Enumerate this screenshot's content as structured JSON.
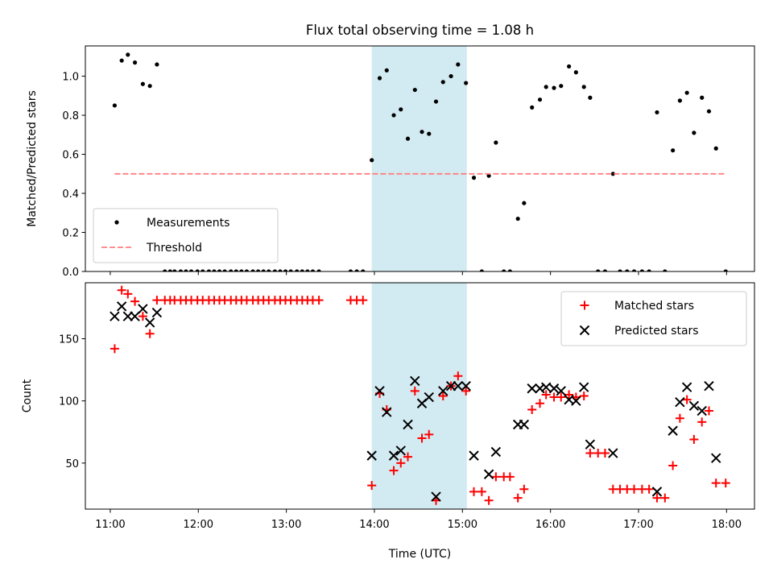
{
  "chart_data": {
    "title": "Flux total observing time = 1.08 h",
    "xlabel": "Time (UTC)",
    "x_unit": "hours UTC",
    "xlim": [
      10.717,
      18.317
    ],
    "xticks": [
      11,
      12,
      13,
      14,
      15,
      16,
      17,
      18
    ],
    "xtick_labels": [
      "11:00",
      "12:00",
      "13:00",
      "14:00",
      "15:00",
      "16:00",
      "17:00",
      "18:00"
    ],
    "highlight_span": {
      "x0": 13.97,
      "x1": 15.05,
      "color": "#add8e6"
    },
    "panels": [
      {
        "id": "ratio",
        "type": "scatter",
        "ylabel": "Matched/Predicted stars",
        "ylim": [
          0,
          1.155
        ],
        "yticks": [
          0.0,
          0.2,
          0.4,
          0.6,
          0.8,
          1.0
        ],
        "ytick_labels": [
          "0.0",
          "0.2",
          "0.4",
          "0.6",
          "0.8",
          "1.0"
        ],
        "legend": {
          "placement": "lower-left",
          "entries": [
            "Measurements",
            "Threshold"
          ]
        },
        "series": [
          {
            "name": "Measurements",
            "marker": "dot",
            "color": "#000000",
            "points": [
              [
                11.05,
                0.85
              ],
              [
                11.13,
                1.08
              ],
              [
                11.2,
                1.11
              ],
              [
                11.28,
                1.07
              ],
              [
                11.37,
                0.96
              ],
              [
                11.45,
                0.95
              ],
              [
                11.53,
                1.06
              ],
              [
                11.62,
                0.0
              ],
              [
                11.68,
                0.0
              ],
              [
                11.73,
                0.0
              ],
              [
                11.8,
                0.0
              ],
              [
                11.86,
                0.0
              ],
              [
                11.92,
                0.0
              ],
              [
                11.99,
                0.0
              ],
              [
                12.05,
                0.0
              ],
              [
                12.12,
                0.0
              ],
              [
                12.18,
                0.0
              ],
              [
                12.24,
                0.0
              ],
              [
                12.3,
                0.0
              ],
              [
                12.37,
                0.0
              ],
              [
                12.43,
                0.0
              ],
              [
                12.49,
                0.0
              ],
              [
                12.55,
                0.0
              ],
              [
                12.62,
                0.0
              ],
              [
                12.68,
                0.0
              ],
              [
                12.74,
                0.0
              ],
              [
                12.8,
                0.0
              ],
              [
                12.87,
                0.0
              ],
              [
                12.93,
                0.0
              ],
              [
                12.99,
                0.0
              ],
              [
                13.05,
                0.0
              ],
              [
                13.12,
                0.0
              ],
              [
                13.18,
                0.0
              ],
              [
                13.24,
                0.0
              ],
              [
                13.3,
                0.0
              ],
              [
                13.37,
                0.0
              ],
              [
                13.73,
                0.0
              ],
              [
                13.8,
                0.0
              ],
              [
                13.87,
                0.0
              ],
              [
                13.97,
                0.57
              ],
              [
                14.06,
                0.99
              ],
              [
                14.14,
                1.03
              ],
              [
                14.22,
                0.8
              ],
              [
                14.3,
                0.83
              ],
              [
                14.38,
                0.68
              ],
              [
                14.46,
                0.93
              ],
              [
                14.54,
                0.715
              ],
              [
                14.62,
                0.705
              ],
              [
                14.7,
                0.87
              ],
              [
                14.78,
                0.97
              ],
              [
                14.87,
                1.0
              ],
              [
                14.95,
                1.06
              ],
              [
                15.04,
                0.965
              ],
              [
                15.13,
                0.48
              ],
              [
                15.22,
                0.0
              ],
              [
                15.3,
                0.49
              ],
              [
                15.38,
                0.66
              ],
              [
                15.47,
                0.0
              ],
              [
                15.54,
                0.0
              ],
              [
                15.63,
                0.27
              ],
              [
                15.7,
                0.35
              ],
              [
                15.79,
                0.84
              ],
              [
                15.88,
                0.88
              ],
              [
                15.95,
                0.945
              ],
              [
                16.04,
                0.94
              ],
              [
                16.12,
                0.95
              ],
              [
                16.21,
                1.05
              ],
              [
                16.29,
                1.02
              ],
              [
                16.38,
                0.945
              ],
              [
                16.45,
                0.89
              ],
              [
                16.54,
                0.0
              ],
              [
                16.62,
                0.0
              ],
              [
                16.71,
                0.5
              ],
              [
                16.79,
                0.0
              ],
              [
                16.87,
                0.0
              ],
              [
                16.95,
                0.0
              ],
              [
                17.04,
                0.0
              ],
              [
                17.12,
                0.0
              ],
              [
                17.21,
                0.815
              ],
              [
                17.3,
                0.0
              ],
              [
                17.39,
                0.62
              ],
              [
                17.47,
                0.875
              ],
              [
                17.55,
                0.915
              ],
              [
                17.63,
                0.71
              ],
              [
                17.72,
                0.89
              ],
              [
                17.8,
                0.82
              ],
              [
                17.88,
                0.63
              ],
              [
                17.99,
                0.0
              ]
            ]
          },
          {
            "name": "Threshold",
            "type": "line",
            "style": "dashed",
            "color": "#ff8080",
            "x": [
              11.05,
              17.99
            ],
            "y": [
              0.5,
              0.5
            ]
          }
        ]
      },
      {
        "id": "counts",
        "type": "scatter",
        "ylabel": "Count",
        "ylim": [
          13,
          195
        ],
        "yticks": [
          50,
          100,
          150
        ],
        "ytick_labels": [
          "50",
          "100",
          "150"
        ],
        "legend": {
          "placement": "top-right",
          "entries": [
            "Matched stars",
            "Predicted stars"
          ]
        },
        "series": [
          {
            "name": "Matched stars",
            "marker": "plus",
            "color": "#ff0000",
            "points": [
              [
                11.05,
                142
              ],
              [
                11.13,
                189
              ],
              [
                11.2,
                186
              ],
              [
                11.28,
                180
              ],
              [
                11.37,
                168
              ],
              [
                11.45,
                154
              ],
              [
                11.53,
                181
              ],
              [
                11.62,
                181
              ],
              [
                11.68,
                181
              ],
              [
                11.73,
                181
              ],
              [
                11.8,
                181
              ],
              [
                11.86,
                181
              ],
              [
                11.92,
                181
              ],
              [
                11.99,
                181
              ],
              [
                12.05,
                181
              ],
              [
                12.12,
                181
              ],
              [
                12.18,
                181
              ],
              [
                12.24,
                181
              ],
              [
                12.3,
                181
              ],
              [
                12.37,
                181
              ],
              [
                12.43,
                181
              ],
              [
                12.49,
                181
              ],
              [
                12.55,
                181
              ],
              [
                12.62,
                181
              ],
              [
                12.68,
                181
              ],
              [
                12.74,
                181
              ],
              [
                12.8,
                181
              ],
              [
                12.87,
                181
              ],
              [
                12.93,
                181
              ],
              [
                12.99,
                181
              ],
              [
                13.05,
                181
              ],
              [
                13.12,
                181
              ],
              [
                13.18,
                181
              ],
              [
                13.24,
                181
              ],
              [
                13.3,
                181
              ],
              [
                13.37,
                181
              ],
              [
                13.73,
                181
              ],
              [
                13.8,
                181
              ],
              [
                13.87,
                181
              ],
              [
                13.97,
                32
              ],
              [
                14.06,
                106
              ],
              [
                14.14,
                93
              ],
              [
                14.22,
                44
              ],
              [
                14.3,
                50
              ],
              [
                14.38,
                55
              ],
              [
                14.46,
                108
              ],
              [
                14.54,
                70
              ],
              [
                14.62,
                73
              ],
              [
                14.7,
                20
              ],
              [
                14.78,
                104
              ],
              [
                14.87,
                112
              ],
              [
                14.95,
                120
              ],
              [
                15.04,
                108
              ],
              [
                15.13,
                27
              ],
              [
                15.22,
                27
              ],
              [
                15.3,
                20
              ],
              [
                15.38,
                39
              ],
              [
                15.47,
                39
              ],
              [
                15.54,
                39
              ],
              [
                15.63,
                22
              ],
              [
                15.7,
                29
              ],
              [
                15.79,
                93
              ],
              [
                15.88,
                98
              ],
              [
                15.95,
                105
              ],
              [
                16.04,
                103
              ],
              [
                16.12,
                103
              ],
              [
                16.21,
                105
              ],
              [
                16.29,
                103
              ],
              [
                16.38,
                104
              ],
              [
                16.45,
                58
              ],
              [
                16.54,
                58
              ],
              [
                16.62,
                58
              ],
              [
                16.71,
                29
              ],
              [
                16.79,
                29
              ],
              [
                16.87,
                29
              ],
              [
                16.95,
                29
              ],
              [
                17.04,
                29
              ],
              [
                17.12,
                29
              ],
              [
                17.21,
                22
              ],
              [
                17.3,
                22
              ],
              [
                17.39,
                48
              ],
              [
                17.47,
                86
              ],
              [
                17.55,
                101
              ],
              [
                17.63,
                69
              ],
              [
                17.72,
                83
              ],
              [
                17.8,
                92
              ],
              [
                17.88,
                34
              ],
              [
                17.99,
                34
              ]
            ]
          },
          {
            "name": "Predicted stars",
            "marker": "x",
            "color": "#000000",
            "points": [
              [
                11.05,
                168
              ],
              [
                11.13,
                176
              ],
              [
                11.2,
                168
              ],
              [
                11.28,
                168
              ],
              [
                11.37,
                174
              ],
              [
                11.45,
                163
              ],
              [
                11.53,
                171
              ],
              [
                13.97,
                56
              ],
              [
                14.06,
                108
              ],
              [
                14.14,
                91
              ],
              [
                14.22,
                56
              ],
              [
                14.3,
                60
              ],
              [
                14.38,
                81
              ],
              [
                14.46,
                116
              ],
              [
                14.54,
                98
              ],
              [
                14.62,
                103
              ],
              [
                14.7,
                23
              ],
              [
                14.78,
                108
              ],
              [
                14.87,
                112
              ],
              [
                14.95,
                112
              ],
              [
                15.04,
                112
              ],
              [
                15.13,
                56
              ],
              [
                15.3,
                41
              ],
              [
                15.38,
                59
              ],
              [
                15.63,
                81
              ],
              [
                15.7,
                81
              ],
              [
                15.79,
                110
              ],
              [
                15.88,
                110
              ],
              [
                15.95,
                111
              ],
              [
                16.04,
                110
              ],
              [
                16.12,
                108
              ],
              [
                16.21,
                101
              ],
              [
                16.29,
                100
              ],
              [
                16.38,
                111
              ],
              [
                16.45,
                65
              ],
              [
                16.71,
                58
              ],
              [
                17.21,
                27
              ],
              [
                17.39,
                76
              ],
              [
                17.47,
                99
              ],
              [
                17.55,
                111
              ],
              [
                17.63,
                96
              ],
              [
                17.72,
                92
              ],
              [
                17.8,
                112
              ],
              [
                17.88,
                54
              ]
            ]
          }
        ]
      }
    ]
  }
}
